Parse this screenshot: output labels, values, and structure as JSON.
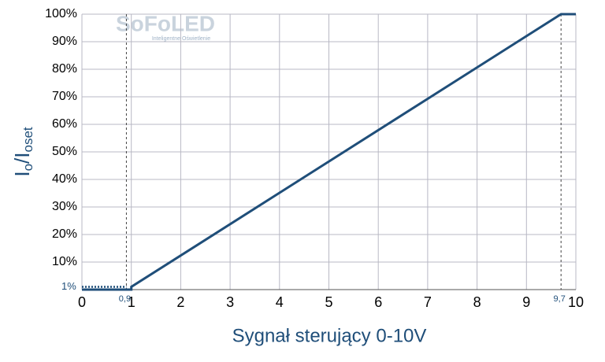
{
  "chart_data": {
    "type": "line",
    "watermark": {
      "title": "SoFoLED",
      "subtitle": "Inteligentne Oświetlenie"
    },
    "xlabel": "Sygnał sterujący 0-10V",
    "ylabel": [
      "I",
      "o",
      "/I",
      "oset"
    ],
    "xlim": [
      0,
      10
    ],
    "ylim": [
      0,
      100
    ],
    "xticks": [
      0,
      1,
      2,
      3,
      4,
      5,
      6,
      7,
      8,
      9,
      10
    ],
    "yticks": [
      {
        "value": 10,
        "label": "10%"
      },
      {
        "value": 20,
        "label": "20%"
      },
      {
        "value": 30,
        "label": "30%"
      },
      {
        "value": 40,
        "label": "40%"
      },
      {
        "value": 50,
        "label": "50%"
      },
      {
        "value": 60,
        "label": "60%"
      },
      {
        "value": 70,
        "label": "70%"
      },
      {
        "value": 80,
        "label": "80%"
      },
      {
        "value": 90,
        "label": "90%"
      },
      {
        "value": 100,
        "label": "100%"
      }
    ],
    "grid": true,
    "color": "#1f4e79",
    "x": [
      0,
      1,
      1,
      9.7,
      10
    ],
    "values": [
      0,
      0,
      1,
      100,
      100
    ],
    "level_marker": {
      "value": 1,
      "label": "1%"
    },
    "x_markers": [
      {
        "value": 0.9,
        "label": "0,9"
      },
      {
        "value": 9.7,
        "label": "9,7"
      }
    ]
  }
}
